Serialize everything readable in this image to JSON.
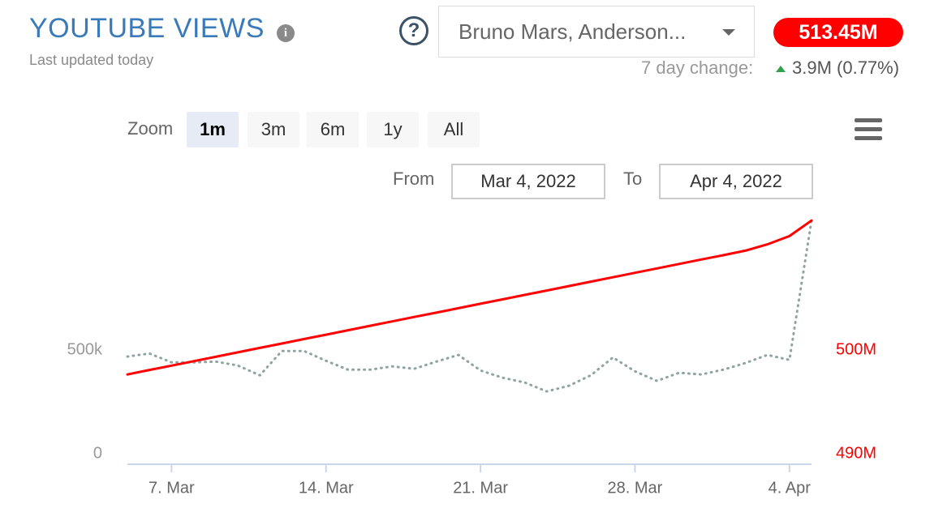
{
  "header": {
    "title": "YOUTUBE VIEWS",
    "info_icon": "i",
    "subtitle": "Last updated today",
    "help_icon": "?",
    "selector": "Bruno Mars, Anderson...",
    "total": "513.45M",
    "change_label": "7 day change:",
    "change_value": "3.9M (0.77%)"
  },
  "controls": {
    "zoom_label": "Zoom",
    "zoom_buttons": [
      "1m",
      "3m",
      "6m",
      "1y",
      "All"
    ],
    "active_zoom": "1m",
    "from_label": "From",
    "from": "Mar 4, 2022",
    "to_label": "To",
    "to": "Apr 4, 2022"
  },
  "chart_data": {
    "type": "line",
    "x": [
      "2022-03-05",
      "2022-03-06",
      "2022-03-07",
      "2022-03-08",
      "2022-03-09",
      "2022-03-10",
      "2022-03-11",
      "2022-03-12",
      "2022-03-13",
      "2022-03-14",
      "2022-03-15",
      "2022-03-16",
      "2022-03-17",
      "2022-03-18",
      "2022-03-19",
      "2022-03-20",
      "2022-03-21",
      "2022-03-22",
      "2022-03-23",
      "2022-03-24",
      "2022-03-25",
      "2022-03-26",
      "2022-03-27",
      "2022-03-28",
      "2022-03-29",
      "2022-03-30",
      "2022-03-31",
      "2022-04-01",
      "2022-04-02",
      "2022-04-03",
      "2022-04-04",
      "2022-04-05"
    ],
    "xlim": [
      "2022-03-05",
      "2022-04-05"
    ],
    "xticks": [
      {
        "value": "2022-03-07",
        "label": "7. Mar"
      },
      {
        "value": "2022-03-14",
        "label": "14. Mar"
      },
      {
        "value": "2022-03-21",
        "label": "21. Mar"
      },
      {
        "value": "2022-03-28",
        "label": "28. Mar"
      },
      {
        "value": "2022-04-04",
        "label": "4. Apr"
      }
    ],
    "ylim": [
      -50000,
      1200000
    ],
    "yticks": [
      0,
      {
        "value": 500000,
        "label": "500k"
      }
    ],
    "y2lim": [
      489000000,
      514000000
    ],
    "y2ticks": [
      {
        "value": 490000000,
        "label": "490M"
      },
      {
        "value": 500000000,
        "label": "500M"
      }
    ],
    "series": [
      {
        "color": "#ff0000",
        "axis": "y2",
        "dash": "solid",
        "values": [
          497660000,
          498090000,
          498510000,
          498940000,
          499360000,
          499790000,
          500220000,
          500640000,
          501070000,
          501490000,
          501920000,
          502350000,
          502770000,
          503200000,
          503620000,
          504050000,
          504480000,
          504900000,
          505330000,
          505750000,
          506180000,
          506610000,
          507030000,
          507460000,
          507880000,
          508310000,
          508740000,
          509160000,
          509590000,
          510200000,
          511000000,
          512500000
        ]
      },
      {
        "color": "#8fa3a0",
        "axis": "y",
        "dash": "dotted",
        "values": [
          469000,
          484000,
          441000,
          441000,
          445000,
          426000,
          379000,
          496000,
          496000,
          449000,
          406000,
          406000,
          422000,
          410000,
          445000,
          477000,
          402000,
          367000,
          344000,
          301000,
          328000,
          379000,
          465000,
          398000,
          352000,
          391000,
          383000,
          406000,
          438000,
          477000,
          453000,
          1125000
        ]
      }
    ]
  }
}
